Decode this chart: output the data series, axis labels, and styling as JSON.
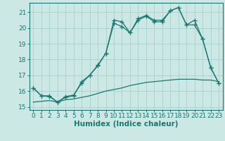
{
  "title": "",
  "xlabel": "Humidex (Indice chaleur)",
  "bg_color": "#cce8e5",
  "line_color": "#1a7870",
  "grid_color": "#aacfcc",
  "ylim": [
    14.8,
    21.6
  ],
  "xlim": [
    -0.5,
    23.5
  ],
  "x": [
    0,
    1,
    2,
    3,
    4,
    5,
    6,
    7,
    8,
    9,
    10,
    11,
    12,
    13,
    14,
    15,
    16,
    17,
    18,
    19,
    20,
    21,
    22,
    23
  ],
  "line1": [
    16.2,
    15.7,
    15.7,
    15.3,
    15.6,
    15.7,
    16.6,
    17.0,
    17.6,
    18.4,
    20.5,
    20.4,
    19.7,
    20.6,
    20.8,
    20.5,
    20.5,
    21.1,
    21.3,
    20.2,
    20.5,
    19.3,
    17.5,
    16.5
  ],
  "line2": [
    16.2,
    15.7,
    15.65,
    15.3,
    15.65,
    15.75,
    16.5,
    17.0,
    17.65,
    18.4,
    20.3,
    20.1,
    19.7,
    20.5,
    20.75,
    20.4,
    20.4,
    21.1,
    21.3,
    20.2,
    20.2,
    19.3,
    17.5,
    16.5
  ],
  "line3": [
    15.3,
    15.35,
    15.4,
    15.3,
    15.45,
    15.5,
    15.6,
    15.7,
    15.85,
    16.0,
    16.1,
    16.2,
    16.35,
    16.45,
    16.55,
    16.6,
    16.65,
    16.7,
    16.75,
    16.75,
    16.75,
    16.7,
    16.7,
    16.6
  ],
  "yticks": [
    15,
    16,
    17,
    18,
    19,
    20,
    21
  ],
  "xticks": [
    0,
    1,
    2,
    3,
    4,
    5,
    6,
    7,
    8,
    9,
    10,
    11,
    12,
    13,
    14,
    15,
    16,
    17,
    18,
    19,
    20,
    21,
    22,
    23
  ],
  "marker": "+",
  "markersize": 4,
  "linewidth": 0.9,
  "tick_fontsize": 6.5,
  "xlabel_fontsize": 7.5
}
